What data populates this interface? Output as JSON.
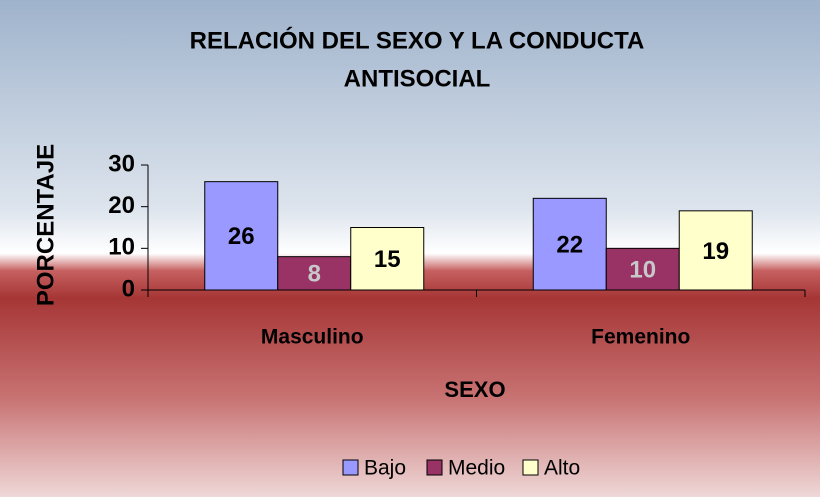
{
  "chart_data": {
    "type": "bar",
    "title": [
      "RELACIÓN DEL SEXO Y LA CONDUCTA",
      "ANTISOCIAL"
    ],
    "x_label": "SEXO",
    "y_label": "PORCENTAJE",
    "categories": [
      "Masculino",
      "Femenino"
    ],
    "series": [
      {
        "name": "Bajo",
        "color": "#9999ff",
        "label_color": "#000000",
        "values": [
          26,
          22
        ]
      },
      {
        "name": "Medio",
        "color": "#993366",
        "label_color": "#c8c8c8",
        "values": [
          8,
          10
        ]
      },
      {
        "name": "Alto",
        "color": "#ffffcc",
        "label_color": "#000000",
        "values": [
          15,
          19
        ]
      }
    ],
    "ylim": [
      0,
      30
    ],
    "yticks": [
      0,
      10,
      20,
      30
    ],
    "grid": false,
    "legend": "bottom"
  }
}
